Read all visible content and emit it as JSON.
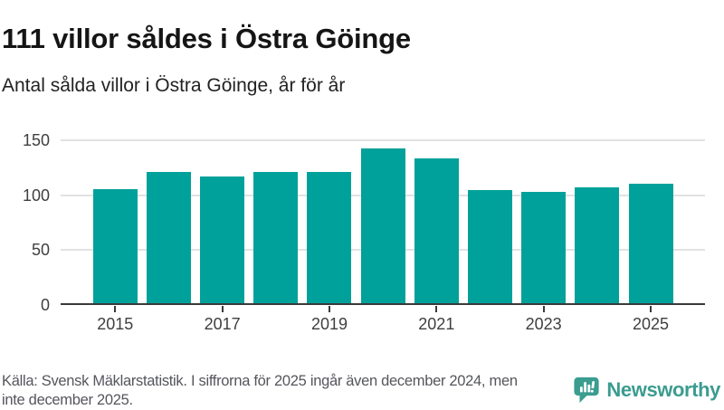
{
  "header": {
    "title": "111 villor såldes i Östra Göinge",
    "subtitle": "Antal sålda villor i Östra Göinge, år för år"
  },
  "chart_data": {
    "type": "bar",
    "title": "111 villor såldes i Östra Göinge",
    "subtitle": "Antal sålda villor i Östra Göinge, år för år",
    "categories": [
      "2015",
      "2016",
      "2017",
      "2018",
      "2019",
      "2020",
      "2021",
      "2022",
      "2023",
      "2024",
      "2025"
    ],
    "values": [
      106,
      121,
      117,
      121,
      121,
      143,
      134,
      105,
      103,
      107,
      111
    ],
    "xlabel": "",
    "ylabel": "",
    "ylim": [
      0,
      150
    ],
    "yticks": [
      0,
      50,
      100,
      150
    ],
    "xtick_labels": [
      "2015",
      "2017",
      "2019",
      "2021",
      "2023",
      "2025"
    ],
    "bar_color": "#00a19a",
    "grid": "horizontal",
    "legend": "none"
  },
  "footer": {
    "lines": [
      "Källa: Svensk Mäklarstatistik. I siffrorna för 2025 ingår även december 2024, men",
      "inte december 2025."
    ],
    "brand": "Newsworthy"
  },
  "colors": {
    "bar": "#00a19a",
    "brand": "#3b9c90",
    "grid": "#e2e2e2",
    "axis": "#3a3a3a",
    "tick_text": "#3f3f3f",
    "footer_text": "#55565c"
  }
}
